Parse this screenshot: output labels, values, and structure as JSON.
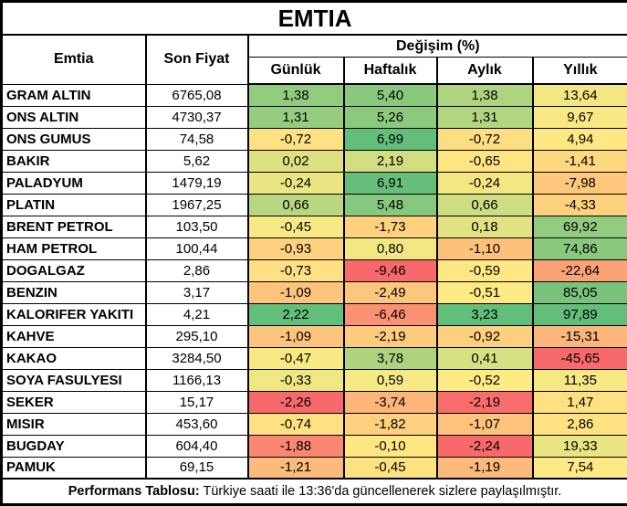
{
  "title": "EMTIA",
  "header": {
    "commodity": "Emtia",
    "last_price": "Son Fiyat",
    "change_group": "Değişim (%)",
    "periods": [
      "Günlük",
      "Haftalık",
      "Aylık",
      "Yıllık"
    ]
  },
  "footer": {
    "bold_label": "Performans Tablosu:",
    "text": "Türkiye saati ile 13:36'da güncellenerek sizlere paylaşılmıştır."
  },
  "color_scale": {
    "min_color": "#F8696B",
    "mid_color": "#FFEB84",
    "max_color": "#63BE7B",
    "scope": "per-column",
    "midpoint": "median"
  },
  "chart_data": {
    "type": "table",
    "title": "EMTIA",
    "columns": [
      "Emtia",
      "Son Fiyat",
      "Günlük",
      "Haftalık",
      "Aylık",
      "Yıllık"
    ],
    "rows": [
      {
        "name": "GRAM ALTIN",
        "last_price": "6765,08",
        "changes": [
          "1,38",
          "5,40",
          "1,38",
          "13,64"
        ]
      },
      {
        "name": "ONS ALTIN",
        "last_price": "4730,37",
        "changes": [
          "1,31",
          "5,26",
          "1,31",
          "9,67"
        ]
      },
      {
        "name": "ONS GUMUS",
        "last_price": "74,58",
        "changes": [
          "-0,72",
          "6,99",
          "-0,72",
          "4,94"
        ]
      },
      {
        "name": "BAKIR",
        "last_price": "5,62",
        "changes": [
          "0,02",
          "2,19",
          "-0,65",
          "-1,41"
        ]
      },
      {
        "name": "PALADYUM",
        "last_price": "1479,19",
        "changes": [
          "-0,24",
          "6,91",
          "-0,24",
          "-7,98"
        ]
      },
      {
        "name": "PLATIN",
        "last_price": "1967,25",
        "changes": [
          "0,66",
          "5,48",
          "0,66",
          "-4,33"
        ]
      },
      {
        "name": "BRENT PETROL",
        "last_price": "103,50",
        "changes": [
          "-0,45",
          "-1,73",
          "0,18",
          "69,92"
        ]
      },
      {
        "name": "HAM PETROL",
        "last_price": "100,44",
        "changes": [
          "-0,93",
          "0,80",
          "-1,10",
          "74,86"
        ]
      },
      {
        "name": "DOGALGAZ",
        "last_price": "2,86",
        "changes": [
          "-0,73",
          "-9,46",
          "-0,59",
          "-22,64"
        ]
      },
      {
        "name": "BENZIN",
        "last_price": "3,17",
        "changes": [
          "-1,09",
          "-2,49",
          "-0,51",
          "85,05"
        ]
      },
      {
        "name": "KALORIFER YAKITI",
        "last_price": "4,21",
        "changes": [
          "2,22",
          "-6,46",
          "3,23",
          "97,89"
        ]
      },
      {
        "name": "KAHVE",
        "last_price": "295,10",
        "changes": [
          "-1,09",
          "-2,19",
          "-0,92",
          "-15,31"
        ]
      },
      {
        "name": "KAKAO",
        "last_price": "3284,50",
        "changes": [
          "-0,47",
          "3,78",
          "0,41",
          "-45,65"
        ]
      },
      {
        "name": "SOYA FASULYESI",
        "last_price": "1166,13",
        "changes": [
          "-0,33",
          "0,59",
          "-0,52",
          "11,35"
        ]
      },
      {
        "name": "SEKER",
        "last_price": "15,17",
        "changes": [
          "-2,26",
          "-3,74",
          "-2,19",
          "1,47"
        ]
      },
      {
        "name": "MISIR",
        "last_price": "453,60",
        "changes": [
          "-0,74",
          "-1,82",
          "-1,07",
          "2,86"
        ]
      },
      {
        "name": "BUGDAY",
        "last_price": "604,40",
        "changes": [
          "-1,88",
          "-0,10",
          "-2,24",
          "19,33"
        ]
      },
      {
        "name": "PAMUK",
        "last_price": "69,15",
        "changes": [
          "-1,21",
          "-0,45",
          "-1,19",
          "7,54"
        ]
      }
    ]
  }
}
